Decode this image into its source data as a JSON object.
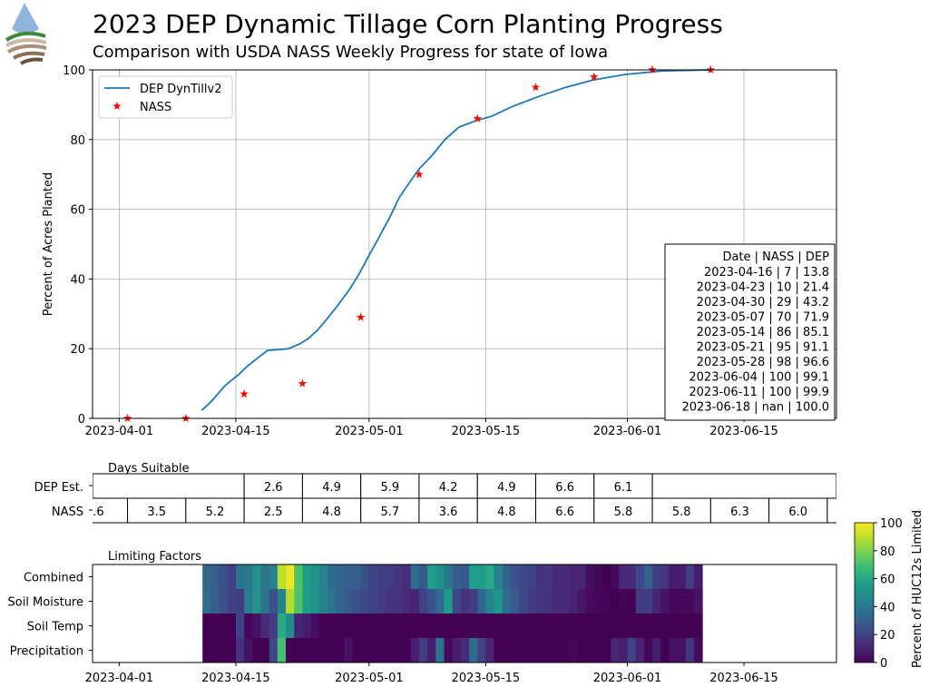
{
  "chart_data": [
    {
      "type": "line",
      "title": "2023 DEP Dynamic Tillage Corn Planting Progress",
      "subtitle": "Comparison with USDA NASS Weekly Progress for state of Iowa",
      "xlabel": "",
      "ylabel": "Percent of Acres Planted",
      "x_units": "days since 2023-04-01",
      "xlim": [
        -3.2,
        86.1
      ],
      "ylim": [
        0,
        100
      ],
      "grid": true,
      "legend_placement": "top-left",
      "yticks": [
        0,
        20,
        40,
        60,
        80,
        100
      ],
      "ytick_labels": [
        "0",
        "20",
        "40",
        "60",
        "80",
        "100"
      ],
      "xticks": [
        0,
        14,
        30,
        44,
        61,
        75
      ],
      "xtick_labels": [
        "2023-04-01",
        "2023-04-15",
        "2023-05-01",
        "2023-05-15",
        "2023-06-01",
        "2023-06-15"
      ],
      "series": [
        {
          "name": "DEP DynTillv2",
          "kind": "line",
          "color": "#1f77b4",
          "x": [
            9.9,
            11,
            12.7,
            14.3,
            15.3,
            16.4,
            17.8,
            19.5,
            20.3,
            21.7,
            22.7,
            23.8,
            24.9,
            26.2,
            27.7,
            28.8,
            29.9,
            31.2,
            32.5,
            33.6,
            34.7,
            36,
            37.5,
            39.1,
            40.8,
            42.8,
            44.7,
            47.3,
            50.4,
            53.6,
            56.9,
            60.8,
            65.2,
            70.9
          ],
          "y": [
            2.3,
            4.7,
            9.4,
            12.5,
            14.8,
            16.9,
            19.5,
            19.8,
            20,
            21.4,
            22.9,
            25.3,
            28.4,
            32.3,
            37.2,
            41.4,
            46.4,
            52,
            57.8,
            63.3,
            67.2,
            71.6,
            75.3,
            80,
            83.6,
            85.4,
            86.7,
            89.6,
            92.4,
            95,
            97.1,
            98.7,
            99.7,
            100
          ]
        },
        {
          "name": "NASS",
          "kind": "scatter",
          "marker": "star",
          "color": "#ff0000",
          "x": [
            1,
            8,
            15,
            22,
            29,
            36,
            43,
            50,
            57,
            64,
            71
          ],
          "y": [
            0,
            0,
            7,
            10,
            29,
            70,
            86,
            95,
            98,
            100,
            100
          ]
        }
      ],
      "annotation_table": {
        "header": "Date       | NASS | DEP",
        "rows": [
          "2023-04-16 | 7 | 13.8",
          "2023-04-23 | 10 | 21.4",
          "2023-04-30 | 29 | 43.2",
          "2023-05-07 | 70 | 71.9",
          "2023-05-14 | 86 | 85.1",
          "2023-05-21 | 95 | 91.1",
          "2023-05-28 | 98 | 96.6",
          "2023-06-04 | 100 | 99.1",
          "2023-06-11 | 100 | 99.9",
          "2023-06-18 | nan | 100.0"
        ]
      }
    },
    {
      "type": "table",
      "title": "Days Suitable",
      "row_labels": [
        "DEP Est.",
        "NASS"
      ],
      "dep_cells": [
        {
          "start": -3.2,
          "end": 15,
          "value": ""
        },
        {
          "start": 15,
          "end": 22,
          "value": "2.6"
        },
        {
          "start": 22,
          "end": 29,
          "value": "4.9"
        },
        {
          "start": 29,
          "end": 36,
          "value": "5.9"
        },
        {
          "start": 36,
          "end": 43,
          "value": "4.2"
        },
        {
          "start": 43,
          "end": 50,
          "value": "4.9"
        },
        {
          "start": 50,
          "end": 57,
          "value": "6.6"
        },
        {
          "start": 57,
          "end": 64,
          "value": "6.1"
        },
        {
          "start": 64,
          "end": 86.1,
          "value": ""
        }
      ],
      "nass_cells": [
        {
          "start": -6,
          "end": 1,
          "value": ".6"
        },
        {
          "start": 1,
          "end": 8,
          "value": "3.5"
        },
        {
          "start": 8,
          "end": 15,
          "value": "5.2"
        },
        {
          "start": 15,
          "end": 22,
          "value": "2.5"
        },
        {
          "start": 22,
          "end": 29,
          "value": "4.8"
        },
        {
          "start": 29,
          "end": 36,
          "value": "5.7"
        },
        {
          "start": 36,
          "end": 43,
          "value": "3.6"
        },
        {
          "start": 43,
          "end": 50,
          "value": "4.8"
        },
        {
          "start": 50,
          "end": 57,
          "value": "6.6"
        },
        {
          "start": 57,
          "end": 64,
          "value": "5.8"
        },
        {
          "start": 64,
          "end": 71,
          "value": "5.8"
        },
        {
          "start": 71,
          "end": 78,
          "value": "6.3"
        },
        {
          "start": 78,
          "end": 85,
          "value": "6.0"
        },
        {
          "start": 85,
          "end": 92,
          "value": ""
        }
      ]
    },
    {
      "type": "heatmap",
      "title": "Limiting Factors",
      "x_start_day": 10,
      "colormap": "viridis",
      "colorbar_label": "Percent of HUC12s Limited",
      "colorbar_range": [
        0,
        100
      ],
      "colorbar_ticks": [
        "0",
        "20",
        "40",
        "60",
        "80",
        "100"
      ],
      "xtick_labels": [
        "2023-04-01",
        "2023-04-15",
        "2023-05-01",
        "2023-05-15",
        "2023-06-01",
        "2023-06-15"
      ],
      "rows": [
        {
          "name": "Combined",
          "values": [
            33,
            30,
            25,
            20,
            38,
            40,
            50,
            38,
            45,
            90,
            98,
            72,
            55,
            52,
            45,
            35,
            32,
            30,
            30,
            25,
            20,
            18,
            18,
            15,
            13,
            35,
            28,
            55,
            50,
            40,
            30,
            28,
            55,
            55,
            60,
            45,
            32,
            25,
            22,
            20,
            15,
            15,
            12,
            12,
            10,
            10,
            4,
            1,
            0,
            2,
            12,
            12,
            22,
            30,
            18,
            15,
            8,
            8,
            18,
            8
          ]
        },
        {
          "name": "Soil Moisture",
          "values": [
            35,
            30,
            25,
            20,
            18,
            42,
            50,
            38,
            25,
            45,
            88,
            72,
            55,
            52,
            45,
            38,
            32,
            28,
            25,
            22,
            20,
            18,
            15,
            15,
            12,
            10,
            20,
            25,
            35,
            55,
            22,
            15,
            18,
            32,
            45,
            52,
            35,
            28,
            22,
            18,
            16,
            14,
            12,
            12,
            10,
            6,
            3,
            2,
            1,
            0,
            1,
            0,
            18,
            18,
            10,
            5,
            2,
            2,
            2,
            5
          ]
        },
        {
          "name": "Soil Temp",
          "values": [
            0,
            0,
            0,
            0,
            20,
            2,
            5,
            12,
            18,
            60,
            48,
            10,
            8,
            4,
            0,
            0,
            0,
            0,
            0,
            0,
            0,
            0,
            0,
            0,
            0,
            0,
            0,
            0,
            0,
            0,
            0,
            0,
            0,
            0,
            0,
            0,
            0,
            0,
            0,
            0,
            0,
            0,
            0,
            0,
            0,
            0,
            0,
            0,
            0,
            0,
            0,
            0,
            0,
            0,
            0,
            0,
            0,
            0,
            0,
            0
          ]
        },
        {
          "name": "Precipitation",
          "values": [
            0,
            0,
            0,
            0,
            14,
            5,
            0,
            0,
            22,
            70,
            0,
            0,
            0,
            0,
            0,
            0,
            0,
            5,
            0,
            0,
            0,
            0,
            0,
            0,
            0,
            8,
            18,
            8,
            38,
            2,
            8,
            12,
            35,
            20,
            10,
            0,
            0,
            0,
            0,
            0,
            0,
            0,
            0,
            0,
            2,
            0,
            0,
            0,
            0,
            10,
            8,
            20,
            10,
            2,
            8,
            0,
            5,
            5,
            15,
            3
          ]
        }
      ]
    }
  ]
}
